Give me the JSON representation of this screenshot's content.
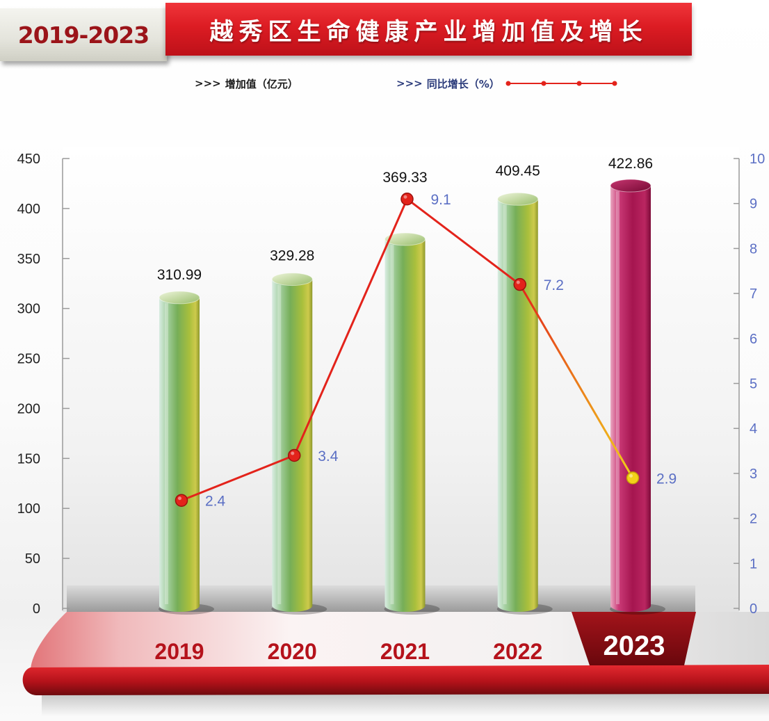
{
  "header": {
    "badge": "2019-2023"
  },
  "colors": {
    "title_banner": "#dc1c23",
    "badge_text": "#9b1419",
    "axis_label": "#222222",
    "right_axis_label": "#5b6fc4",
    "axis_line": "#9a9a9a",
    "bar_label": "#111111",
    "line": "#e3231b",
    "line_point_edge": "#9c120e",
    "line_highlight": "#f2d21a",
    "line_highlight_edge": "#c49d0a",
    "line_label": "#5b6fc4",
    "year_label": "#b5121b",
    "year_label_highlight": "#ffffff",
    "year_tab": "#8a0e14"
  },
  "chart_data": {
    "type": "bar",
    "title": "越秀区生命健康产业增加值及增长",
    "legend_marker": ">>>",
    "legend_position": "top",
    "categories": [
      "2019",
      "2020",
      "2021",
      "2022",
      "2023"
    ],
    "highlight_category": "2023",
    "series": [
      {
        "name": "增加值（亿元）",
        "type": "bar",
        "y_axis": "left",
        "values": [
          310.99,
          329.28,
          369.33,
          409.45,
          422.86
        ]
      },
      {
        "name": "同比增长（%）",
        "type": "line",
        "y_axis": "right",
        "values": [
          2.4,
          3.4,
          9.1,
          7.2,
          2.9
        ]
      }
    ],
    "ylim": [
      0,
      450
    ],
    "yticks": [
      0,
      50,
      100,
      150,
      200,
      250,
      300,
      350,
      400,
      450
    ],
    "y2lim": [
      0,
      10
    ],
    "y2ticks": [
      0,
      1,
      2,
      3,
      4,
      5,
      6,
      7,
      8,
      9,
      10
    ],
    "grid": false
  }
}
